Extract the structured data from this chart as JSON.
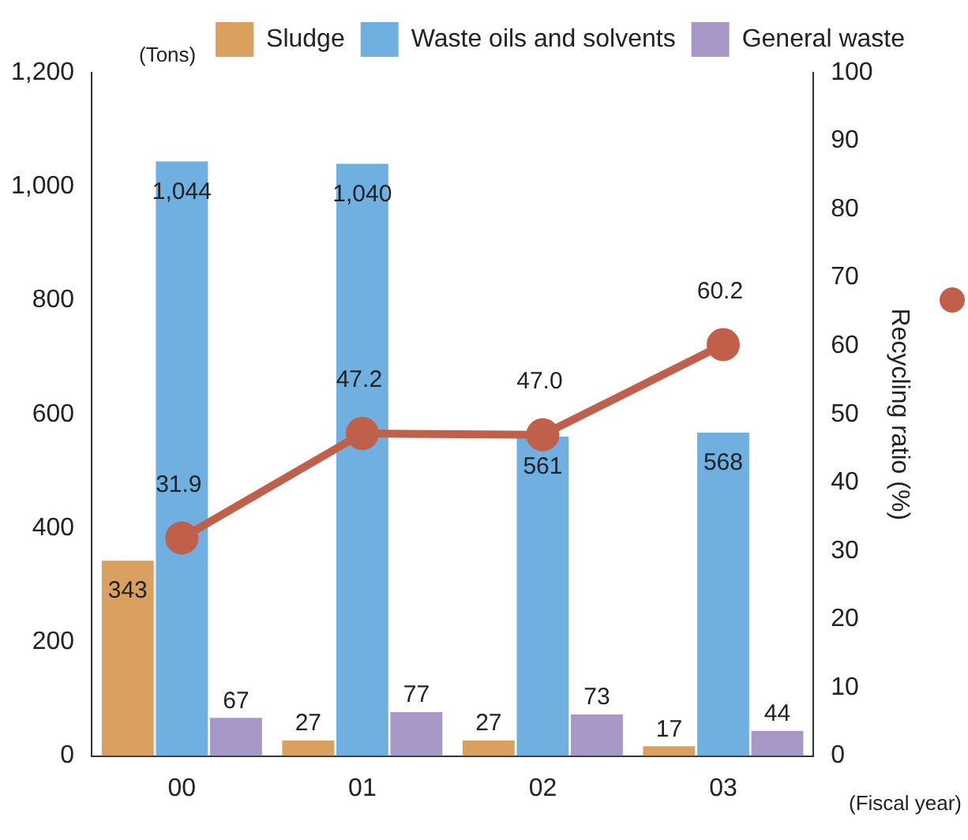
{
  "chart_data": {
    "type": "bar",
    "categories": [
      "00",
      "01",
      "02",
      "03"
    ],
    "series": [
      {
        "name": "Sludge",
        "color": "#d9a060",
        "values": [
          343,
          27,
          27,
          17
        ],
        "value_labels": [
          "343",
          "27",
          "27",
          "17"
        ]
      },
      {
        "name": "Waste oils and solvents",
        "color": "#6fb0e0",
        "values": [
          1044,
          1040,
          561,
          568
        ],
        "value_labels": [
          "1,044",
          "1,040",
          "561",
          "568"
        ]
      },
      {
        "name": "General waste",
        "color": "#a898c8",
        "values": [
          67,
          77,
          73,
          44
        ],
        "value_labels": [
          "67",
          "77",
          "73",
          "44"
        ]
      },
      {
        "type": "line",
        "axis": "y2",
        "color": "#c0604a",
        "values": [
          31.9,
          47.2,
          47.0,
          60.2
        ],
        "value_labels": [
          "31.9",
          "47.2",
          "47.0",
          "60.2"
        ]
      }
    ],
    "ylabel": "(Tons)",
    "xlabel": "(Fiscal year)",
    "y2label": "Recycling ratio (%)",
    "ylim": [
      0,
      1200
    ],
    "yticks": [
      0,
      {
        "value": 200,
        "label": "200"
      },
      {
        "value": 400,
        "label": "400"
      },
      {
        "value": 600,
        "label": "600"
      },
      {
        "value": 800,
        "label": "800"
      },
      {
        "value": 1000,
        "label": "1,000"
      },
      {
        "value": 1200,
        "label": "1,200"
      }
    ],
    "y2lim": [
      0,
      100
    ],
    "y2ticks": [
      0,
      10,
      20,
      30,
      40,
      50,
      60,
      70,
      80,
      90,
      100
    ],
    "legend": "top",
    "grid": false,
    "marker": "circle"
  }
}
